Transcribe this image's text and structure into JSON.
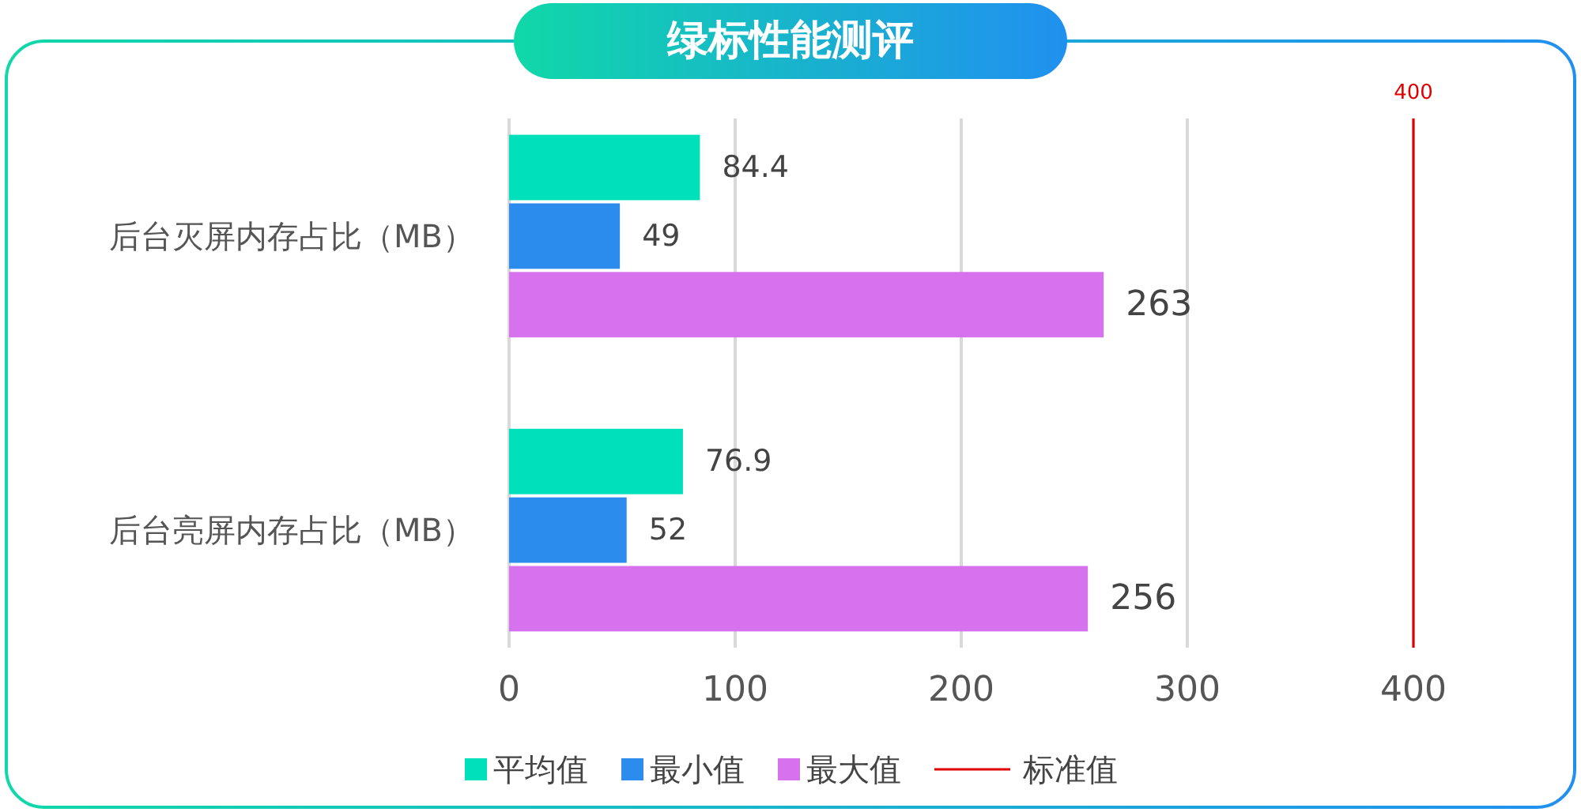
{
  "chart_data": {
    "type": "bar",
    "orientation": "horizontal",
    "title": "绿标性能测评",
    "categories": [
      "后台灭屏内存占比（MB）",
      "后台亮屏内存占比（MB）"
    ],
    "series": [
      {
        "name": "平均值",
        "color": "#00e0bb",
        "values": [
          84.4,
          76.9
        ]
      },
      {
        "name": "最小值",
        "color": "#2b8cee",
        "values": [
          49,
          52
        ]
      },
      {
        "name": "最大值",
        "color": "#d672ee",
        "values": [
          263,
          256
        ]
      }
    ],
    "xlim": [
      0,
      400
    ],
    "xticks": [
      0,
      100,
      200,
      300,
      400
    ],
    "grid": "x",
    "data_labels": true,
    "legend": "bottom",
    "ref_lines": [
      {
        "axis": "x",
        "value": 400,
        "label": "标准值",
        "color": "#e00000"
      }
    ],
    "annotations": [
      "400"
    ]
  }
}
